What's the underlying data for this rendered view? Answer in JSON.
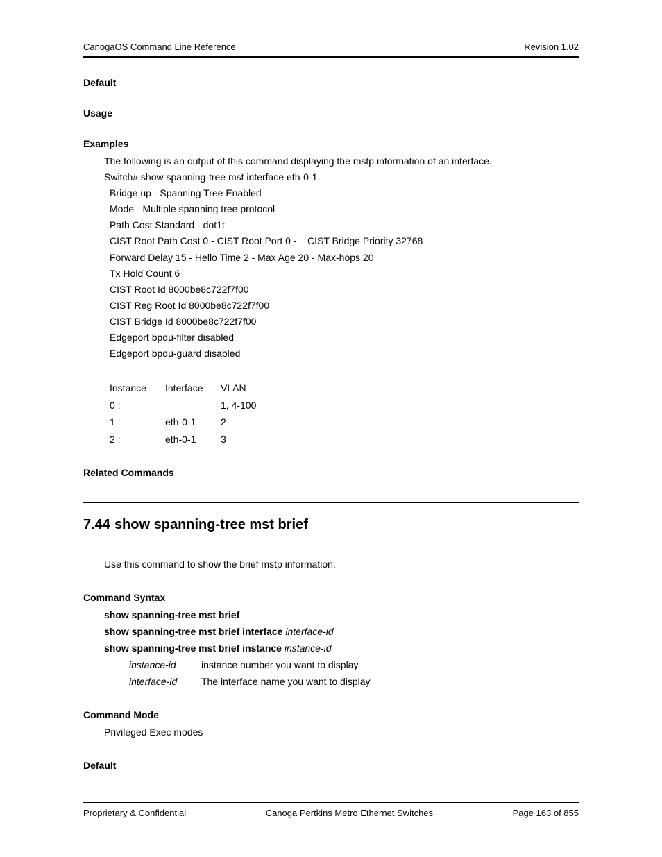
{
  "header": {
    "left": "CanogaOS Command Line Reference",
    "right": "Revision 1.02"
  },
  "sections": {
    "default1": "Default",
    "usage": "Usage",
    "examples": "Examples",
    "related": "Related Commands",
    "syntax": "Command Syntax",
    "mode": "Command Mode",
    "default2": "Default"
  },
  "examples": {
    "intro": "The following is an output of this command displaying the mstp information of an interface.",
    "cmd": "Switch# show spanning-tree mst interface eth-0-1",
    "lines": [
      "Bridge up - Spanning Tree Enabled",
      "Mode - Multiple spanning tree protocol",
      "Path Cost Standard - dot1t",
      "CIST Root Path Cost 0 - CIST Root Port 0 -    CIST Bridge Priority 32768",
      "Forward Delay 15 - Hello Time 2 - Max Age 20 - Max-hops 20",
      "Tx Hold Count 6",
      "CIST Root Id 8000be8c722f7f00",
      "CIST Reg Root Id 8000be8c722f7f00",
      "CIST Bridge Id 8000be8c722f7f00",
      "Edgeport bpdu-filter disabled",
      "Edgeport bpdu-guard disabled"
    ]
  },
  "instance_table": {
    "headers": {
      "instance": "Instance",
      "interface": "Interface",
      "vlan": "VLAN"
    },
    "rows": [
      {
        "instance": "0 :",
        "interface": "",
        "vlan": "1, 4-100"
      },
      {
        "instance": "1 :",
        "interface": "eth-0-1",
        "vlan": "2"
      },
      {
        "instance": "2 :",
        "interface": "eth-0-1",
        "vlan": "3"
      }
    ]
  },
  "chapter": {
    "number": "7.44",
    "title": "show spanning-tree mst brief",
    "desc": "Use this command to show the brief mstp information."
  },
  "syntax": {
    "line1": "show spanning-tree mst brief",
    "line2": {
      "cmd": "show spanning-tree mst brief interface",
      "arg": "interface-id"
    },
    "line3": {
      "cmd": "show spanning-tree mst brief instance",
      "arg": "instance-id"
    },
    "params": [
      {
        "name": "instance-id",
        "desc": "instance number you want to display"
      },
      {
        "name": "interface-id",
        "desc": "The interface name you want to display"
      }
    ]
  },
  "mode": {
    "text": "Privileged Exec modes"
  },
  "footer": {
    "left": "Proprietary & Confidential",
    "center": "Canoga Pertkins Metro Ethernet Switches",
    "right": "Page 163 of 855"
  }
}
